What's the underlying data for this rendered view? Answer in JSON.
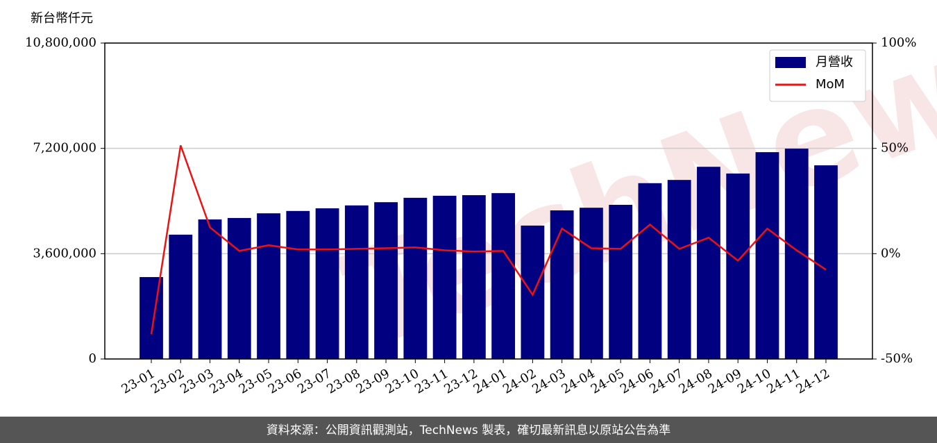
{
  "chart_data": {
    "type": "bar_line",
    "y_label": "新台幣仟元",
    "watermark": "TechNews",
    "footer": "資料來源：公開資訊觀測站，TechNews 製表，確切最新訊息以原站公告為準",
    "categories": [
      "23-01",
      "23-02",
      "23-03",
      "23-04",
      "23-05",
      "23-06",
      "23-07",
      "23-08",
      "23-09",
      "23-10",
      "23-11",
      "23-12",
      "24-01",
      "24-02",
      "24-03",
      "24-04",
      "24-05",
      "24-06",
      "24-07",
      "24-08",
      "24-09",
      "24-10",
      "24-11",
      "24-12"
    ],
    "series": [
      {
        "name": "月營收",
        "type": "bar",
        "color": "#000080",
        "values": [
          2800000,
          4250000,
          4770000,
          4820000,
          4980000,
          5060000,
          5150000,
          5250000,
          5360000,
          5510000,
          5580000,
          5600000,
          5670000,
          4560000,
          5080000,
          5170000,
          5270000,
          6010000,
          6120000,
          6570000,
          6340000,
          7070000,
          7190000,
          6620000
        ]
      },
      {
        "name": "MoM",
        "type": "line",
        "axis": "y2",
        "color": "#ee1111",
        "values": [
          -38.2,
          51.4,
          12.5,
          1.3,
          4.0,
          2.0,
          2.0,
          2.3,
          2.6,
          3.0,
          1.6,
          1.0,
          1.3,
          -19.5,
          11.9,
          2.6,
          2.3,
          13.8,
          2.3,
          7.6,
          -3.3,
          11.9,
          1.6,
          -7.6
        ]
      }
    ],
    "ylim": [
      0,
      10800000
    ],
    "yticks": [
      0,
      {
        "value": 3600000,
        "label": "3,600,000"
      },
      {
        "value": 7200000,
        "label": "7,200,000"
      },
      {
        "value": 10800000,
        "label": "10,800,000"
      }
    ],
    "y2lim": [
      -50,
      100
    ],
    "y2ticks": [
      {
        "value": -50,
        "label": "-50%"
      },
      {
        "value": 0,
        "label": "0%"
      },
      {
        "value": 50,
        "label": "50%"
      },
      {
        "value": 100,
        "label": "100%"
      }
    ],
    "grid": true,
    "legend": "upper right"
  }
}
